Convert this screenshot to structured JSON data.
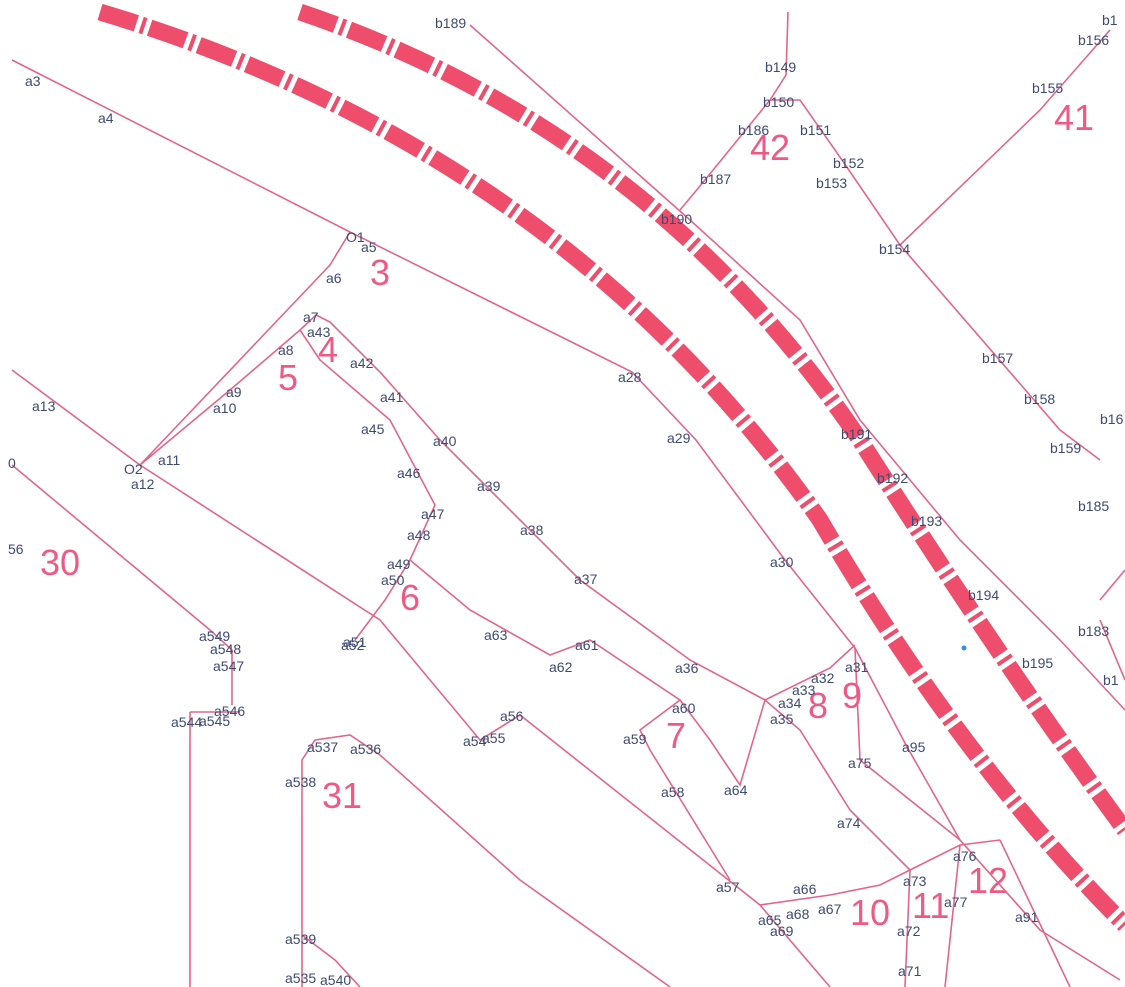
{
  "map": {
    "parcel_numbers": [
      "3",
      "4",
      "5",
      "6",
      "7",
      "8",
      "9",
      "10",
      "11",
      "12",
      "30",
      "31",
      "41",
      "42"
    ],
    "point_labels": [
      "b189",
      "b1",
      "b156",
      "a3",
      "b149",
      "b155",
      "b150",
      "a4",
      "b186",
      "b151",
      "b152",
      "b153",
      "b187",
      "b190",
      "O1",
      "a5",
      "b154",
      "a6",
      "a7",
      "a43",
      "a8",
      "a42",
      "b157",
      "a28",
      "b158",
      "b16",
      "a13",
      "a9",
      "a10",
      "a41",
      "a45",
      "a40",
      "a29",
      "b191",
      "b159",
      "0",
      "O2",
      "a11",
      "a12",
      "a46",
      "b192",
      "a39",
      "a47",
      "a38",
      "b193",
      "b185",
      "a48",
      "56",
      "a49",
      "a50",
      "a30",
      "a37",
      "b194",
      "a549",
      "a548",
      "a52",
      "a51",
      "a63",
      "a61",
      "b183",
      "a547",
      "a62",
      "a36",
      "a31",
      "b195",
      "b1",
      "a33",
      "a32",
      "a60",
      "a34",
      "a546",
      "a545",
      "a544",
      "a56",
      "a35",
      "a59",
      "a54",
      "a55",
      "a537",
      "a536",
      "a95",
      "a75",
      "a538",
      "a58",
      "a64",
      "a74",
      "a76",
      "a57",
      "a73",
      "a66",
      "a77",
      "a67",
      "a68",
      "a65",
      "a69",
      "a91",
      "a72",
      "a539",
      "a71",
      "a535",
      "a540"
    ]
  }
}
